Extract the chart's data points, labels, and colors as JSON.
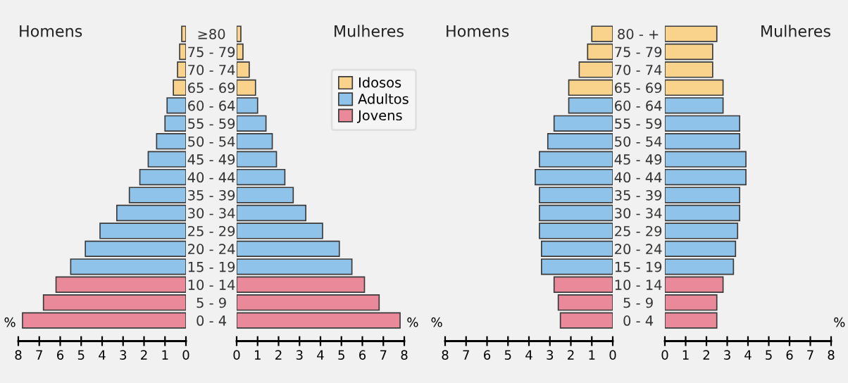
{
  "chart_data": [
    {
      "type": "bar",
      "orientation": "horizontal",
      "title": "Homens",
      "xlabel": "%",
      "categories": [
        "≥80",
        "75 - 79",
        "70 - 74",
        "65 - 69",
        "60 - 64",
        "55 - 59",
        "50 - 54",
        "45 - 49",
        "40 - 44",
        "35 - 39",
        "30 - 34",
        "25 - 29",
        "20 - 24",
        "15 - 19",
        "10 - 14",
        "5 - 9",
        "0 - 4"
      ],
      "series": [
        {
          "color": "#f9d38b",
          "values": [
            0.2,
            0.3,
            0.4,
            0.6,
            null,
            null,
            null,
            null,
            null,
            null,
            null,
            null,
            null,
            null,
            null,
            null,
            null
          ]
        },
        {
          "color": "#8fc3ea",
          "values": [
            null,
            null,
            null,
            null,
            0.9,
            1.0,
            1.4,
            1.8,
            2.2,
            2.7,
            3.3,
            4.1,
            4.8,
            5.5,
            null,
            null,
            null
          ]
        },
        {
          "color": "#e9899a",
          "values": [
            null,
            null,
            null,
            null,
            null,
            null,
            null,
            null,
            null,
            null,
            null,
            null,
            null,
            null,
            6.2,
            6.8,
            7.8
          ]
        }
      ],
      "xlim": [
        8,
        0
      ],
      "xticks": [
        8,
        7,
        6,
        5,
        4,
        3,
        2,
        1,
        0
      ]
    },
    {
      "type": "bar",
      "orientation": "horizontal",
      "title": "Mulheres",
      "xlabel": "%",
      "tick_labels": "x",
      "legend": "top right",
      "categories": [
        null,
        null,
        null,
        null,
        null,
        null,
        null,
        null,
        null,
        null,
        null,
        null,
        null,
        null,
        null,
        null,
        null
      ],
      "series": [
        {
          "name": "Idosos",
          "color": "#f9d38b",
          "values": [
            0.2,
            0.3,
            0.6,
            0.9,
            null,
            null,
            null,
            null,
            null,
            null,
            null,
            null,
            null,
            null,
            null,
            null,
            null
          ]
        },
        {
          "name": "Adultos",
          "color": "#8fc3ea",
          "values": [
            null,
            null,
            null,
            null,
            1.0,
            1.4,
            1.7,
            1.9,
            2.3,
            2.7,
            3.3,
            4.1,
            4.9,
            5.5,
            null,
            null,
            null
          ]
        },
        {
          "name": "Jovens",
          "color": "#e9899a",
          "values": [
            null,
            null,
            null,
            null,
            null,
            null,
            null,
            null,
            null,
            null,
            null,
            null,
            null,
            null,
            6.1,
            6.8,
            7.8
          ]
        }
      ],
      "xlim": [
        0,
        8
      ],
      "xticks": [
        0,
        1,
        2,
        3,
        4,
        5,
        6,
        7,
        8
      ]
    },
    {
      "type": "bar",
      "orientation": "horizontal",
      "title": "Homens",
      "xlabel": "%",
      "categories": [
        "80 - +",
        "75 - 79",
        "70 - 74",
        "65 - 69",
        "60 - 64",
        "55 - 59",
        "50 - 54",
        "45 - 49",
        "40 - 44",
        "35 - 39",
        "30 - 34",
        "25 - 29",
        "20 - 24",
        "15 - 19",
        "10 - 14",
        "5 - 9",
        "0 - 4"
      ],
      "series": [
        {
          "color": "#f9d38b",
          "values": [
            1.0,
            1.2,
            1.6,
            2.1,
            null,
            null,
            null,
            null,
            null,
            null,
            null,
            null,
            null,
            null,
            null,
            null,
            null
          ]
        },
        {
          "color": "#8fc3ea",
          "values": [
            null,
            null,
            null,
            null,
            2.1,
            2.8,
            3.1,
            3.5,
            3.7,
            3.5,
            3.5,
            3.5,
            3.4,
            3.4,
            null,
            null,
            null
          ]
        },
        {
          "color": "#e9899a",
          "values": [
            null,
            null,
            null,
            null,
            null,
            null,
            null,
            null,
            null,
            null,
            null,
            null,
            null,
            null,
            2.8,
            2.6,
            2.5
          ]
        }
      ],
      "xlim": [
        8,
        0
      ],
      "xticks": [
        8,
        7,
        6,
        5,
        4,
        3,
        2,
        1,
        0
      ]
    },
    {
      "type": "bar",
      "orientation": "horizontal",
      "title": "Mulheres",
      "xlabel": "%",
      "tick_labels": "x",
      "categories": [
        null,
        null,
        null,
        null,
        null,
        null,
        null,
        null,
        null,
        null,
        null,
        null,
        null,
        null,
        null,
        null,
        null
      ],
      "series": [
        {
          "color": "#f9d38b",
          "values": [
            2.5,
            2.3,
            2.3,
            2.8,
            null,
            null,
            null,
            null,
            null,
            null,
            null,
            null,
            null,
            null,
            null,
            null,
            null
          ]
        },
        {
          "color": "#8fc3ea",
          "values": [
            null,
            null,
            null,
            null,
            2.8,
            3.6,
            3.6,
            3.9,
            3.9,
            3.6,
            3.6,
            3.5,
            3.4,
            3.3,
            null,
            null,
            null
          ]
        },
        {
          "color": "#e9899a",
          "values": [
            null,
            null,
            null,
            null,
            null,
            null,
            null,
            null,
            null,
            null,
            null,
            null,
            null,
            null,
            2.8,
            2.5,
            2.5
          ]
        }
      ],
      "xlim": [
        0,
        8
      ],
      "xticks": [
        0,
        1,
        2,
        3,
        4,
        5,
        6,
        7,
        8
      ]
    }
  ]
}
